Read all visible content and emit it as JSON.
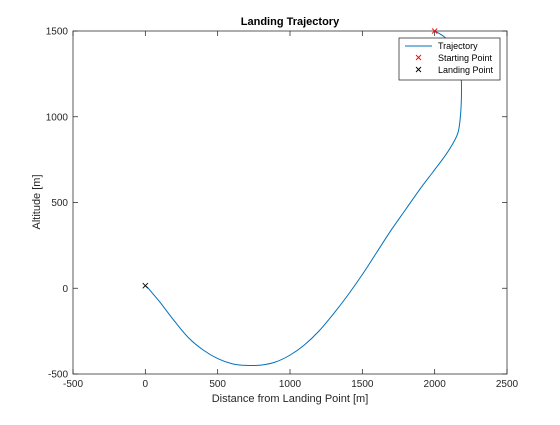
{
  "chart_data": {
    "type": "line",
    "title": "Landing Trajectory",
    "xlabel": "Distance from Landing Point [m]",
    "ylabel": "Altitude [m]",
    "xlim": [
      -500,
      2500
    ],
    "ylim": [
      -500,
      1500
    ],
    "xticks": [
      -500,
      0,
      500,
      1000,
      1500,
      2000,
      2500
    ],
    "yticks": [
      -500,
      0,
      500,
      1000,
      1500
    ],
    "xtick_labels": [
      "-500",
      "0",
      "500",
      "1000",
      "1500",
      "2000",
      "2500"
    ],
    "ytick_labels": [
      "-500",
      "0",
      "500",
      "1000",
      "1500"
    ],
    "grid": false,
    "legend_position": "top-right",
    "series": [
      {
        "name": "Trajectory",
        "kind": "line",
        "color": "#0072BD",
        "x": [
          2000,
          2060,
          2110,
          2150,
          2175,
          2185,
          2182,
          2165,
          2130,
          2070,
          1990,
          1900,
          1800,
          1700,
          1600,
          1500,
          1400,
          1300,
          1200,
          1100,
          1000,
          900,
          800,
          700,
          600,
          500,
          400,
          300,
          200,
          100,
          50,
          20,
          0
        ],
        "y": [
          1500,
          1470,
          1430,
          1380,
          1310,
          1200,
          1050,
          920,
          850,
          770,
          680,
          580,
          460,
          340,
          210,
          80,
          -40,
          -150,
          -250,
          -330,
          -390,
          -430,
          -448,
          -450,
          -440,
          -410,
          -360,
          -290,
          -190,
          -80,
          -30,
          0,
          15
        ]
      },
      {
        "name": "Starting Point",
        "kind": "marker",
        "marker": "x",
        "color": "#ff0000",
        "x": [
          2000
        ],
        "y": [
          1500
        ]
      },
      {
        "name": "Landing Point",
        "kind": "marker",
        "marker": "x",
        "color": "#000000",
        "x": [
          0
        ],
        "y": [
          15
        ]
      }
    ]
  },
  "legend": {
    "items": [
      "Trajectory",
      "Starting Point",
      "Landing Point"
    ]
  }
}
